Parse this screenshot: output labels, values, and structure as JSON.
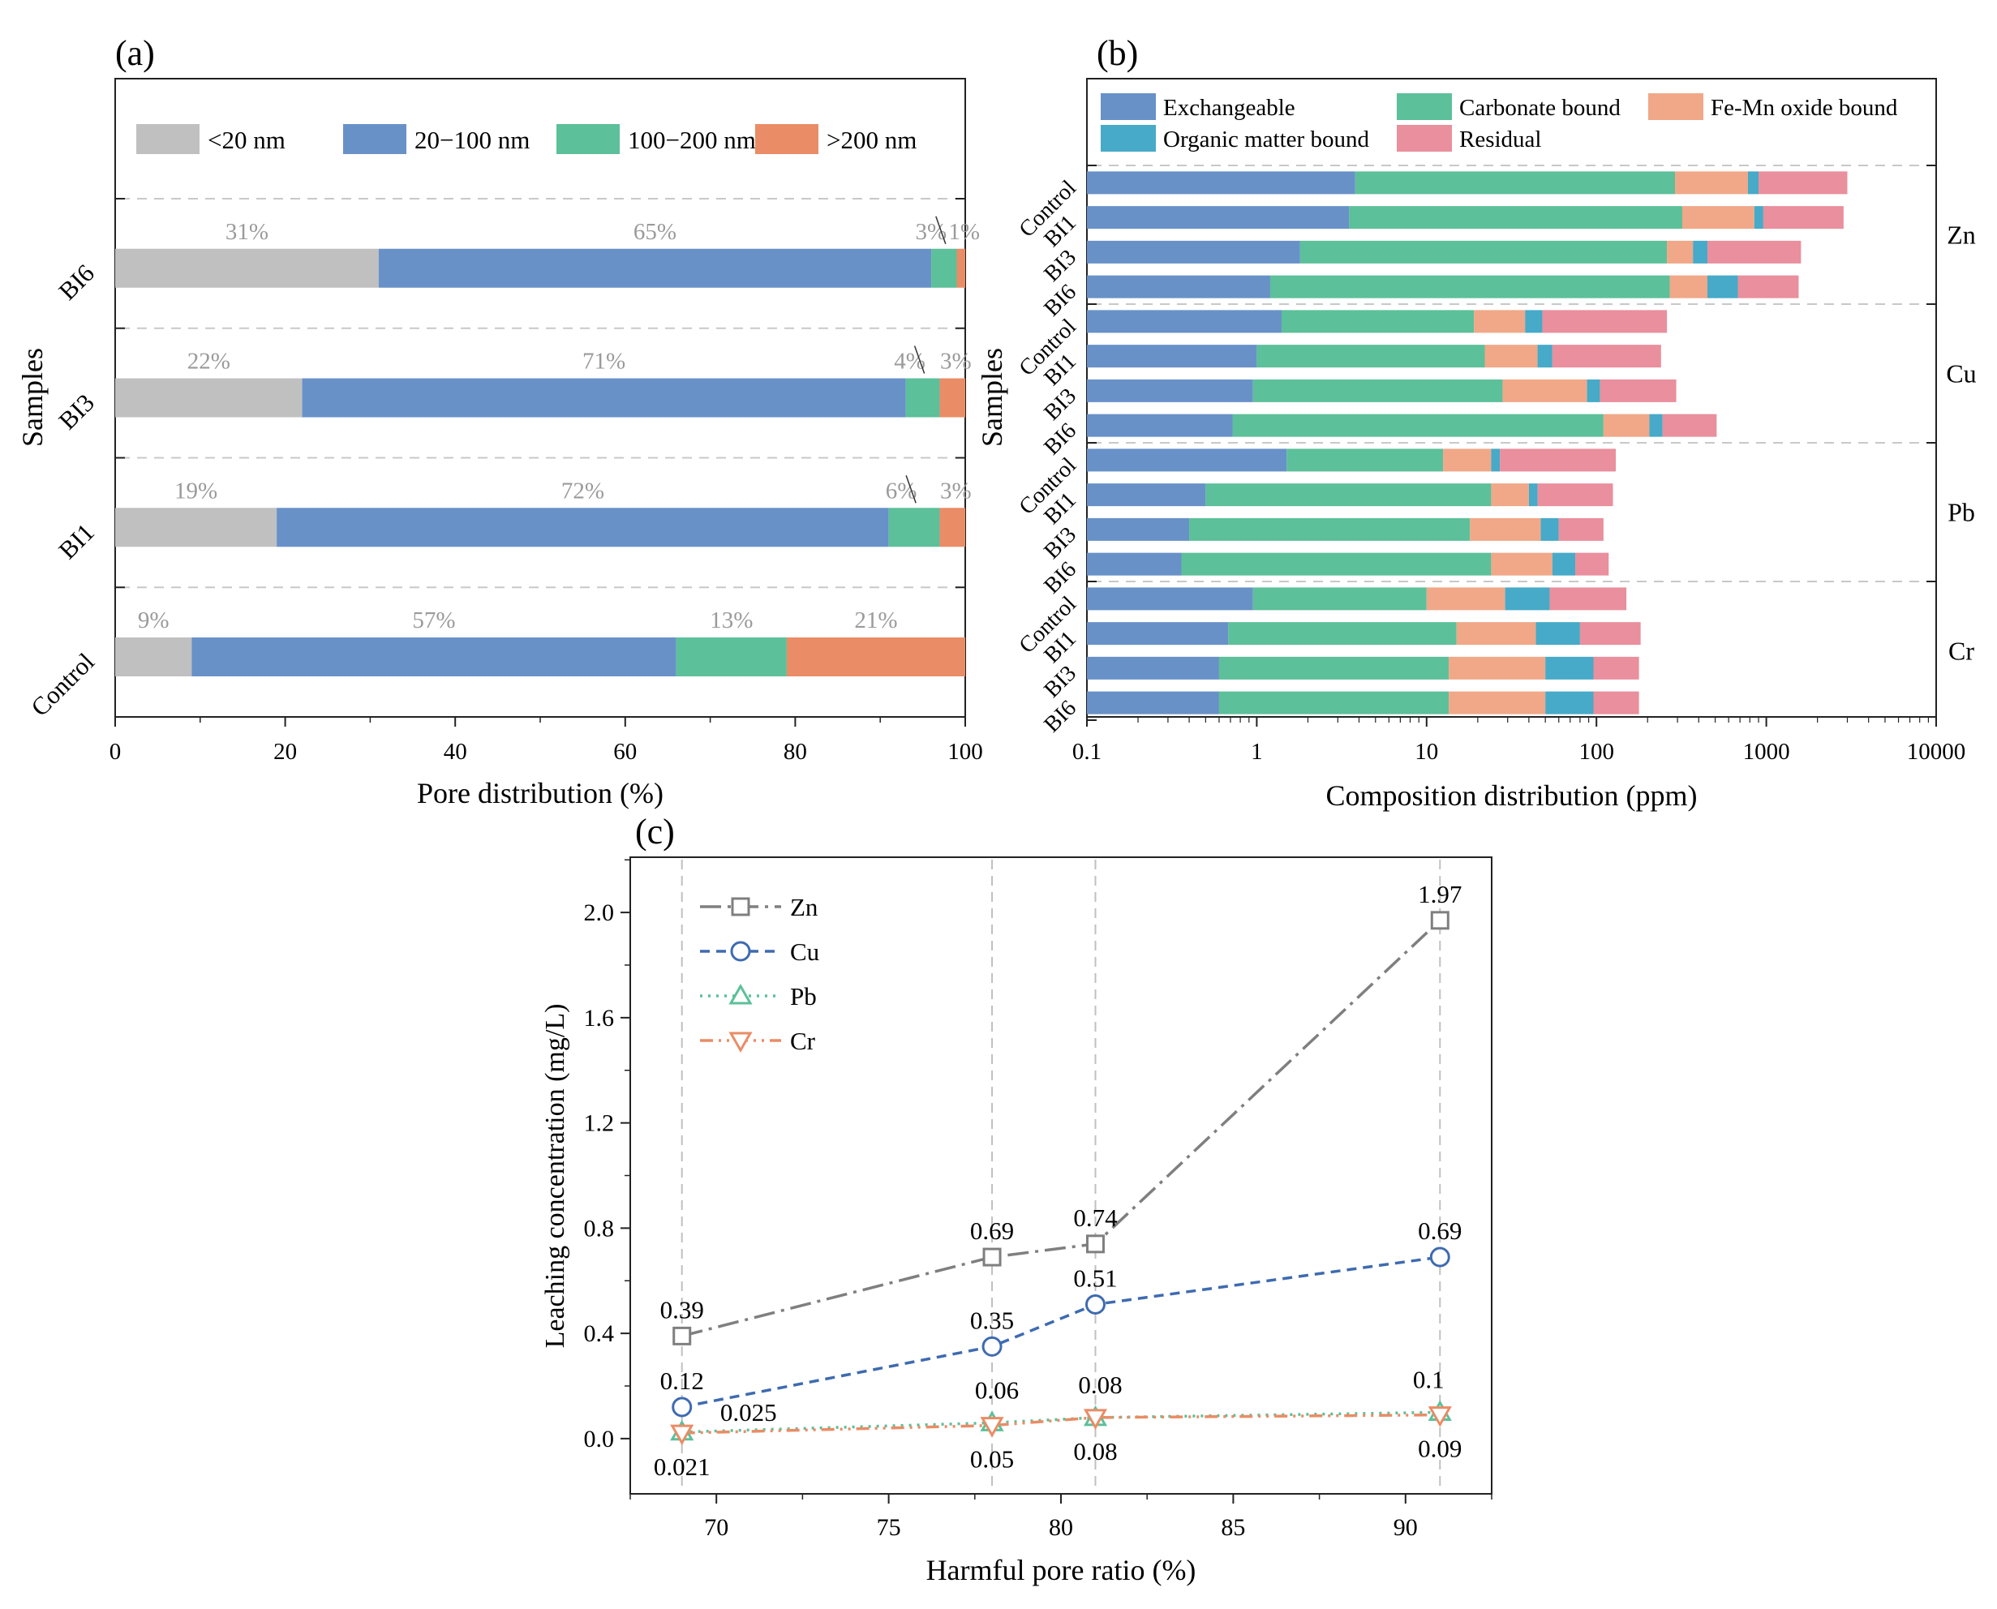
{
  "chart_data": [
    {
      "id": "a",
      "panel_label": "(a)",
      "type": "bar",
      "stacked": true,
      "orientation": "horizontal",
      "xlabel": "Pore distribution (%)",
      "ylabel": "Samples",
      "xlim": [
        0,
        100
      ],
      "xticks": [
        "0",
        "20",
        "40",
        "60",
        "80",
        "100"
      ],
      "legend_position": "top",
      "categories": [
        "Control",
        "BI1",
        "BI3",
        "BI6"
      ],
      "series": [
        {
          "name": "<20 nm",
          "color": "#c0c0c0",
          "label_color": "#9a9a9a",
          "values": [
            9,
            19,
            22,
            31
          ]
        },
        {
          "name": "20−100 nm",
          "color": "#6891c8",
          "label_color": "#9a9a9a",
          "values": [
            57,
            72,
            71,
            65
          ]
        },
        {
          "name": "100−200 nm",
          "color": "#5cc09a",
          "label_color": "#9a9a9a",
          "values": [
            13,
            6,
            4,
            3
          ]
        },
        {
          "name": ">200 nm",
          "color": "#ea8c66",
          "label_color": "#9a9a9a",
          "values": [
            21,
            3,
            3,
            1
          ]
        }
      ],
      "data_labels": [
        [
          "9%",
          "57%",
          "13%",
          "21%"
        ],
        [
          "19%",
          "72%",
          "6%",
          "3%"
        ],
        [
          "22%",
          "71%",
          "4%",
          "3%"
        ],
        [
          "31%",
          "65%",
          "3%",
          "1%"
        ]
      ]
    },
    {
      "id": "b",
      "panel_label": "(b)",
      "type": "bar",
      "stacked": true,
      "orientation": "horizontal",
      "xscale": "log",
      "xlabel": "Composition distribution (ppm)",
      "ylabel": "Samples",
      "xlim": [
        0.1,
        10000
      ],
      "xticks": [
        "0.1",
        "1",
        "10",
        "100",
        "1000",
        "10000"
      ],
      "legend_position": "top",
      "legend": [
        {
          "name": "Exchangeable",
          "color": "#6891c8"
        },
        {
          "name": "Carbonate bound",
          "color": "#5cc09a"
        },
        {
          "name": "Fe-Mn oxide bound",
          "color": "#f0a888"
        },
        {
          "name": "Organic matter bound",
          "color": "#46aac8"
        },
        {
          "name": "Residual",
          "color": "#e98f9d"
        }
      ],
      "groups": [
        {
          "name": "Zn",
          "rows": [
            {
              "sample": "Control",
              "boundaries": [
                3.8,
                290,
                780,
                900,
                3000
              ]
            },
            {
              "sample": "BI1",
              "boundaries": [
                3.5,
                320,
                850,
                960,
                2850
              ]
            },
            {
              "sample": "BI3",
              "boundaries": [
                1.8,
                260,
                370,
                450,
                1600
              ]
            },
            {
              "sample": "BI6",
              "boundaries": [
                1.2,
                270,
                450,
                680,
                1550
              ]
            }
          ]
        },
        {
          "name": "Cu",
          "rows": [
            {
              "sample": "Control",
              "boundaries": [
                1.4,
                19,
                38,
                48,
                260
              ]
            },
            {
              "sample": "BI1",
              "boundaries": [
                1,
                22,
                45,
                55,
                240
              ]
            },
            {
              "sample": "BI3",
              "boundaries": [
                0.95,
                28,
                88,
                105,
                295
              ]
            },
            {
              "sample": "BI6",
              "boundaries": [
                0.72,
                110,
                205,
                245,
                510
              ]
            }
          ]
        },
        {
          "name": "Pb",
          "rows": [
            {
              "sample": "Control",
              "boundaries": [
                1.5,
                12.5,
                24,
                27,
                130
              ]
            },
            {
              "sample": "BI1",
              "boundaries": [
                0.5,
                24,
                40,
                45,
                125
              ]
            },
            {
              "sample": "BI3",
              "boundaries": [
                0.4,
                18,
                47,
                60,
                110
              ]
            },
            {
              "sample": "BI6",
              "boundaries": [
                0.36,
                24,
                55,
                75,
                118
              ]
            }
          ]
        },
        {
          "name": "Cr",
          "rows": [
            {
              "sample": "Control",
              "boundaries": [
                0.95,
                10,
                29,
                53,
                150
              ]
            },
            {
              "sample": "BI1",
              "boundaries": [
                0.68,
                15,
                44,
                80,
                182
              ]
            },
            {
              "sample": "BI3",
              "boundaries": [
                0.6,
                13.5,
                50,
                96,
                178
              ]
            },
            {
              "sample": "BI6",
              "boundaries": [
                0.6,
                13.5,
                50,
                96,
                178
              ]
            }
          ]
        }
      ]
    },
    {
      "id": "c",
      "panel_label": "(c)",
      "type": "line",
      "xlabel": "Harmful pore ratio (%)",
      "ylabel": "Leaching concentration (mg/L)",
      "xlim": [
        67.5,
        92.5
      ],
      "ylim": [
        -0.21,
        2.21
      ],
      "xticks": [
        "70",
        "75",
        "80",
        "85",
        "90"
      ],
      "yticks": [
        "0.0",
        "0.4",
        "0.8",
        "1.2",
        "1.6",
        "2.0"
      ],
      "grid": "vertical dashed lines at data x",
      "legend_position": "top-left",
      "x": [
        69,
        78,
        81,
        91
      ],
      "series": [
        {
          "name": "Zn",
          "color": "#7f7f7f",
          "marker": "square",
          "line": "dash-dot",
          "values": [
            0.39,
            0.69,
            0.74,
            1.97
          ],
          "labels": [
            "0.39",
            "0.69",
            "0.74",
            "1.97"
          ]
        },
        {
          "name": "Cu",
          "color": "#3e6bb0",
          "marker": "circle",
          "line": "dashed",
          "values": [
            0.12,
            0.35,
            0.51,
            0.69
          ],
          "labels": [
            "0.12",
            "0.35",
            "0.51",
            "0.69"
          ]
        },
        {
          "name": "Pb",
          "color": "#5cc09a",
          "marker": "triangle-up",
          "line": "dotted",
          "values": [
            0.025,
            0.06,
            0.08,
            0.1
          ],
          "labels": [
            "0.025",
            "0.06",
            "0.08",
            "0.1"
          ]
        },
        {
          "name": "Cr",
          "color": "#ea8c66",
          "marker": "triangle-down",
          "line": "dash-dot-dot",
          "values": [
            0.021,
            0.05,
            0.08,
            0.09
          ],
          "labels": [
            "0.021",
            "0.05",
            "0.08",
            "0.09"
          ]
        }
      ]
    }
  ]
}
